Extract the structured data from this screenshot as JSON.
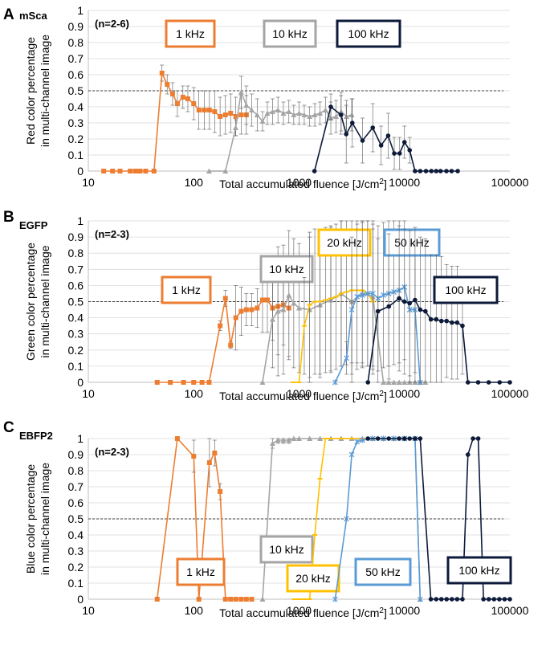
{
  "figure": {
    "panels": [
      "A",
      "B",
      "C"
    ]
  },
  "chart_data": [
    {
      "type": "line",
      "panel_label": "A",
      "title": "mSca",
      "n_label": "(n=2-6)",
      "xlabel_main": "Total accumulated fluence [J/cm",
      "xlabel_sup": "2",
      "xlabel_end": "]",
      "ylabel_line1": "Red color percentage",
      "ylabel_line2": "in multi-channel image",
      "xscale": "log",
      "xlim": [
        10,
        100000
      ],
      "ylim": [
        0,
        1
      ],
      "x_ticks": [
        10,
        100,
        1000,
        10000,
        100000
      ],
      "x_tick_labels": [
        "10",
        "100",
        "1000",
        "10000",
        "100000"
      ],
      "y_ticks": [
        0,
        0.1,
        0.2,
        0.3,
        0.4,
        0.5,
        0.6,
        0.7,
        0.8,
        0.9,
        1
      ],
      "y_tick_labels": [
        "0",
        "0.1",
        "0.2",
        "0.3",
        "0.4",
        "0.5",
        "0.6",
        "0.7",
        "0.8",
        "0.9",
        "1"
      ],
      "reference_line": 0.5,
      "series": [
        {
          "name": "1 kHz",
          "color": "#ed7d31",
          "marker": "square",
          "legend_pos": "top-left",
          "x": [
            14,
            17,
            20,
            25,
            28,
            31,
            35,
            42,
            50,
            56,
            63,
            70,
            79,
            88,
            100,
            112,
            126,
            141,
            158,
            178,
            200,
            224,
            251,
            282,
            316
          ],
          "y": [
            0,
            0,
            0,
            0,
            0,
            0,
            0,
            0,
            0.61,
            0.54,
            0.48,
            0.42,
            0.46,
            0.45,
            0.42,
            0.38,
            0.38,
            0.38,
            0.37,
            0.34,
            0.35,
            0.36,
            0.34,
            0.35,
            0.35
          ],
          "err": [
            0,
            0,
            0,
            0,
            0,
            0,
            0,
            0,
            0.05,
            0.06,
            0.07,
            0.08,
            0.07,
            0.08,
            0.1,
            0.12,
            0.12,
            0.12,
            0.13,
            0.12,
            0.12,
            0.12,
            0.12,
            0.12,
            0.12
          ]
        },
        {
          "name": "10 kHz",
          "color": "#a5a5a5",
          "marker": "triangle",
          "legend_pos": "top-center",
          "x": [
            140,
            200,
            250,
            282,
            316,
            355,
            400,
            450,
            500,
            560,
            630,
            710,
            800,
            890,
            1000,
            1120,
            1260,
            1410,
            1580,
            1780,
            2000,
            2240,
            2510,
            2820,
            3160
          ],
          "y": [
            0,
            0,
            0.27,
            0.49,
            0.41,
            0.38,
            0.35,
            0.31,
            0.36,
            0.37,
            0.38,
            0.36,
            0.37,
            0.35,
            0.36,
            0.35,
            0.34,
            0.35,
            0.36,
            0.38,
            0.33,
            0.34,
            0.37,
            0.34,
            0.35
          ],
          "err": [
            0,
            0,
            0.05,
            0.1,
            0.12,
            0.1,
            0.1,
            0.06,
            0.07,
            0.08,
            0.08,
            0.07,
            0.07,
            0.06,
            0.07,
            0.06,
            0.06,
            0.07,
            0.07,
            0.08,
            0.1,
            0.1,
            0.12,
            0.1,
            0.1
          ]
        },
        {
          "name": "100 kHz",
          "color": "#0d1a3a",
          "marker": "circle",
          "legend_pos": "top-right",
          "x": [
            1400,
            2000,
            2500,
            2800,
            3200,
            4000,
            5000,
            6000,
            7000,
            8000,
            9000,
            10000,
            11200,
            12600,
            14100,
            16000,
            18000,
            20000,
            22000,
            25000,
            28000,
            32000
          ],
          "y": [
            0,
            0.4,
            0.35,
            0.23,
            0.3,
            0.19,
            0.27,
            0.16,
            0.22,
            0.11,
            0.11,
            0.18,
            0.13,
            0,
            0,
            0,
            0,
            0,
            0,
            0,
            0,
            0
          ],
          "err": [
            0,
            0.08,
            0.12,
            0.18,
            0.15,
            0.14,
            0.15,
            0.12,
            0.14,
            0.1,
            0.1,
            0.1,
            0.08,
            0,
            0,
            0,
            0,
            0,
            0,
            0,
            0,
            0
          ]
        }
      ]
    },
    {
      "type": "line",
      "panel_label": "B",
      "title": "EGFP",
      "n_label": "(n=2-3)",
      "xlabel_main": "Total accumulated fluence [J/cm",
      "xlabel_sup": "2",
      "xlabel_end": "]",
      "ylabel_line1": "Green color percentage",
      "ylabel_line2": "in multi-channel image",
      "xscale": "log",
      "xlim": [
        10,
        100000
      ],
      "ylim": [
        0,
        1
      ],
      "x_ticks": [
        10,
        100,
        1000,
        10000,
        100000
      ],
      "x_tick_labels": [
        "10",
        "100",
        "1000",
        "10000",
        "100000"
      ],
      "y_ticks": [
        0,
        0.1,
        0.2,
        0.3,
        0.4,
        0.5,
        0.6,
        0.7,
        0.8,
        0.9,
        1
      ],
      "y_tick_labels": [
        "0",
        "0.1",
        "0.2",
        "0.3",
        "0.4",
        "0.5",
        "0.6",
        "0.7",
        "0.8",
        "0.9",
        "1"
      ],
      "reference_line": 0.5,
      "series": [
        {
          "name": "1 kHz",
          "color": "#ed7d31",
          "marker": "square",
          "x": [
            45,
            60,
            80,
            100,
            120,
            140,
            178,
            200,
            224,
            251,
            282,
            316,
            355,
            400,
            450,
            500,
            560,
            630,
            710,
            800
          ],
          "y": [
            0,
            0,
            0,
            0,
            0,
            0,
            0.35,
            0.52,
            0.23,
            0.4,
            0.44,
            0.45,
            0.45,
            0.46,
            0.51,
            0.51,
            0.46,
            0.47,
            0.48,
            0.46
          ],
          "err": [
            0,
            0,
            0,
            0,
            0,
            0,
            0.03,
            0.05,
            0.02,
            0.2,
            0.15,
            0.1,
            0.1,
            0.12,
            0.2,
            0.2,
            0.2,
            0.3,
            0.25,
            0.3
          ]
        },
        {
          "name": "10 kHz",
          "color": "#a5a5a5",
          "marker": "triangle",
          "x": [
            450,
            560,
            630,
            710,
            800,
            890,
            1000,
            1260,
            1580,
            2000,
            2510,
            3160,
            3980,
            5010,
            6310,
            7080,
            7940,
            8910,
            10000,
            11200,
            12600,
            14100,
            15800
          ],
          "y": [
            0,
            0.39,
            0.44,
            0.45,
            0.54,
            0.49,
            0.46,
            0.45,
            0.48,
            0.51,
            0.55,
            0.5,
            0.55,
            0.53,
            0,
            0,
            0,
            0,
            0,
            0,
            0,
            0,
            0
          ],
          "err": [
            0,
            0.3,
            0.4,
            0.4,
            0.4,
            0.4,
            0.4,
            0.45,
            0.45,
            0.45,
            0.45,
            0.45,
            0.45,
            0.45,
            0,
            0,
            0,
            0,
            0,
            0,
            0,
            0,
            0
          ]
        },
        {
          "name": "20 kHz",
          "color": "#ffc000",
          "marker": "dash",
          "legend_pos": "top-center",
          "x": [
            880,
            1000,
            1120,
            1260,
            1410,
            1580,
            1780,
            2000,
            2240,
            2510,
            2820,
            3160,
            3550,
            3980,
            4470,
            5010
          ],
          "y": [
            0,
            0,
            0.35,
            0.48,
            0.5,
            0.5,
            0.51,
            0.52,
            0.53,
            0.55,
            0.56,
            0.57,
            0.57,
            0.57,
            0.55,
            0.5
          ],
          "err": [
            0,
            0,
            0.3,
            0.45,
            0.45,
            0.45,
            0.45,
            0.45,
            0.45,
            0.45,
            0.45,
            0.45,
            0.45,
            0.45,
            0.45,
            0.45
          ]
        },
        {
          "name": "50 kHz",
          "color": "#5b9bd5",
          "marker": "star",
          "legend_pos": "top-right",
          "x": [
            2200,
            2820,
            3160,
            3550,
            3980,
            4470,
            5010,
            5620,
            6310,
            7080,
            7940,
            8910,
            10000,
            11200,
            12600,
            14100
          ],
          "y": [
            0,
            0.15,
            0.45,
            0.53,
            0.54,
            0.55,
            0.55,
            0.52,
            0.54,
            0.55,
            0.56,
            0.57,
            0.59,
            0.45,
            0.45,
            0
          ],
          "err": [
            0,
            0.1,
            0.45,
            0.45,
            0.45,
            0.45,
            0.45,
            0.45,
            0.45,
            0.45,
            0.45,
            0.45,
            0.45,
            0.45,
            0.45,
            0
          ]
        },
        {
          "name": "100 kHz",
          "color": "#0d1a3a",
          "marker": "circle",
          "x": [
            4500,
            5600,
            7100,
            8900,
            10000,
            11200,
            12600,
            14100,
            15800,
            17800,
            20000,
            22400,
            25100,
            28200,
            31600,
            35500,
            40000,
            50000,
            63000,
            80000,
            100000
          ],
          "y": [
            0,
            0.44,
            0.47,
            0.52,
            0.5,
            0.49,
            0.51,
            0.45,
            0.44,
            0.39,
            0.39,
            0.38,
            0.38,
            0.37,
            0.37,
            0.35,
            0,
            0,
            0,
            0,
            0
          ],
          "err": [
            0,
            0.45,
            0.45,
            0.45,
            0.45,
            0.45,
            0.45,
            0.45,
            0.45,
            0.4,
            0.4,
            0.4,
            0.35,
            0.35,
            0.35,
            0.3,
            0,
            0,
            0,
            0,
            0
          ]
        }
      ]
    },
    {
      "type": "line",
      "panel_label": "C",
      "title": "EBFP2",
      "n_label": "(n=2-3)",
      "xlabel_main": "Total accumulated fluence [J/cm",
      "xlabel_sup": "2",
      "xlabel_end": "]",
      "ylabel_line1": "Blue color percentage",
      "ylabel_line2": "in multi-channel image",
      "xscale": "log",
      "xlim": [
        10,
        100000
      ],
      "ylim": [
        0,
        1
      ],
      "x_ticks": [
        10,
        100,
        1000,
        10000,
        100000
      ],
      "x_tick_labels": [
        "10",
        "100",
        "1000",
        "10000",
        "100000"
      ],
      "y_ticks": [
        0,
        0.1,
        0.2,
        0.3,
        0.4,
        0.5,
        0.6,
        0.7,
        0.8,
        0.9,
        1
      ],
      "y_tick_labels": [
        "0",
        "0.1",
        "0.2",
        "0.3",
        "0.4",
        "0.5",
        "0.6",
        "0.7",
        "0.8",
        "0.9",
        "1"
      ],
      "reference_line": 0.5,
      "series": [
        {
          "name": "1 kHz",
          "color": "#ed7d31",
          "marker": "square",
          "x": [
            45,
            70,
            100,
            112,
            141,
            158,
            178,
            200,
            224,
            251,
            282,
            316,
            355
          ],
          "y": [
            0,
            1,
            0.89,
            0,
            0.85,
            0.91,
            0.67,
            0,
            0,
            0,
            0,
            0,
            0
          ],
          "err": [
            0,
            0,
            0.1,
            0,
            0.15,
            0.08,
            0.05,
            0,
            0,
            0,
            0,
            0,
            0
          ]
        },
        {
          "name": "10 kHz",
          "color": "#a5a5a5",
          "marker": "triangle",
          "x": [
            450,
            560,
            630,
            710,
            800,
            890,
            1000,
            1260,
            1580,
            2000,
            2510,
            3160,
            3980,
            5010,
            6310,
            7940,
            10000,
            12600,
            14100
          ],
          "y": [
            0,
            0.97,
            0.99,
            0.99,
            0.99,
            1,
            1,
            1,
            1,
            1,
            1,
            1,
            1,
            1,
            1,
            1,
            1,
            1,
            0
          ],
          "err": [
            0,
            0.03,
            0.02,
            0.02,
            0.02,
            0,
            0,
            0,
            0,
            0,
            0,
            0,
            0,
            0,
            0,
            0,
            0,
            0,
            0
          ]
        },
        {
          "name": "20 kHz",
          "color": "#ffc000",
          "marker": "dash",
          "x": [
            900,
            1000,
            1120,
            1260,
            1410,
            1580,
            1780,
            2000,
            2510,
            3160,
            3980,
            5010
          ],
          "y": [
            0,
            0,
            0,
            0,
            0.4,
            0.75,
            1,
            1,
            1,
            1,
            1,
            1
          ],
          "err": [
            0,
            0,
            0,
            0,
            0,
            0,
            0,
            0,
            0,
            0,
            0,
            0
          ]
        },
        {
          "name": "50 kHz",
          "color": "#5b9bd5",
          "marker": "star",
          "x": [
            2200,
            2820,
            3160,
            3550,
            3980,
            5010,
            6310,
            7940,
            10000,
            12600,
            14100
          ],
          "y": [
            0,
            0.5,
            0.9,
            0.98,
            0.99,
            1,
            1,
            1,
            1,
            1,
            0
          ],
          "err": [
            0,
            0,
            0,
            0,
            0,
            0,
            0,
            0,
            0,
            0,
            0
          ]
        },
        {
          "name": "100 kHz",
          "color": "#0d1a3a",
          "marker": "circle",
          "x": [
            4500,
            5600,
            7100,
            8900,
            10000,
            11200,
            12600,
            14100,
            17800,
            20000,
            22400,
            25100,
            28200,
            31600,
            35500,
            40000,
            44700,
            50100,
            56200,
            63100,
            70800,
            79400,
            89100,
            100000
          ],
          "y": [
            1,
            1,
            1,
            1,
            1,
            1,
            1,
            1,
            0,
            0,
            0,
            0,
            0,
            0,
            0,
            0.9,
            1,
            1,
            0,
            0,
            0,
            0,
            0,
            0
          ],
          "err": [
            0,
            0,
            0,
            0,
            0,
            0,
            0,
            0,
            0,
            0,
            0,
            0,
            0,
            0,
            0,
            0,
            0,
            0,
            0,
            0,
            0,
            0,
            0,
            0
          ]
        }
      ]
    }
  ]
}
